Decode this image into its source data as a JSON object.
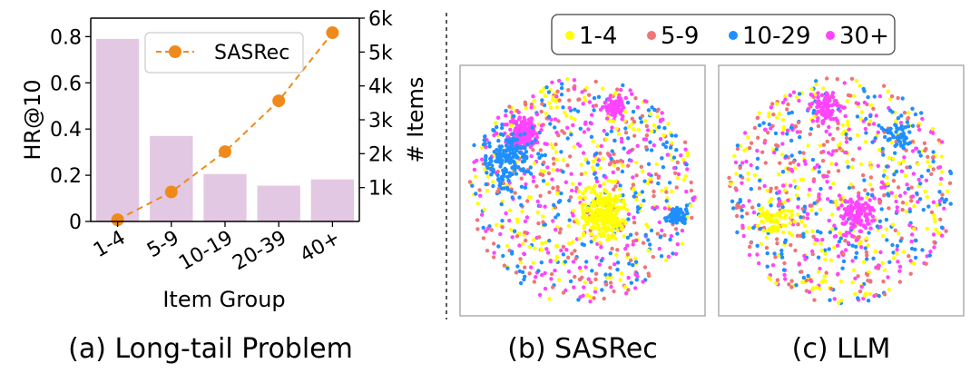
{
  "chart_data": [
    {
      "type": "bar+line",
      "panel_caption": "(a) Long-tail Problem",
      "xlabel": "Item Group",
      "ylabel": "HR@10",
      "y2label": "# Items",
      "categories": [
        "1-4",
        "5-9",
        "10-19",
        "20-39",
        "40+"
      ],
      "bars": {
        "name": "HR@10",
        "axis": "left",
        "color": "#e2c8e2",
        "values": [
          0.79,
          0.37,
          0.205,
          0.155,
          0.182
        ]
      },
      "line": {
        "name": "SASRec",
        "axis": "right",
        "color": "#ef8a1a",
        "values": [
          50,
          870,
          2060,
          3560,
          5570
        ]
      },
      "ylim": [
        0,
        0.88
      ],
      "y_ticks": [
        0,
        0.2,
        0.4,
        0.6,
        0.8
      ],
      "y_tick_labels": [
        "0",
        "0.2",
        "0.4",
        "0.6",
        "0.8"
      ],
      "y2lim": [
        0,
        6000
      ],
      "y2_ticks": [
        1000,
        2000,
        3000,
        4000,
        5000,
        6000
      ],
      "y2_tick_labels": [
        "1k",
        "2k",
        "3k",
        "4k",
        "5k",
        "6k"
      ],
      "legend": [
        "SASRec"
      ],
      "legend_position": "top-center"
    },
    {
      "type": "scatter",
      "panel_caption": "(b) SASRec",
      "description_series": "t-SNE item embedding, colored by item group",
      "legend": [
        {
          "label": "1-4",
          "color": "#ffff00"
        },
        {
          "label": "5-9",
          "color": "#f07575"
        },
        {
          "label": "10-29",
          "color": "#1f8fff"
        },
        {
          "label": "30+",
          "color": "#ff44ff"
        }
      ]
    },
    {
      "type": "scatter",
      "panel_caption": "(c) LLM",
      "legend": [
        {
          "label": "1-4",
          "color": "#ffff00"
        },
        {
          "label": "5-9",
          "color": "#f07575"
        },
        {
          "label": "10-29",
          "color": "#1f8fff"
        },
        {
          "label": "30+",
          "color": "#ff44ff"
        }
      ]
    }
  ]
}
